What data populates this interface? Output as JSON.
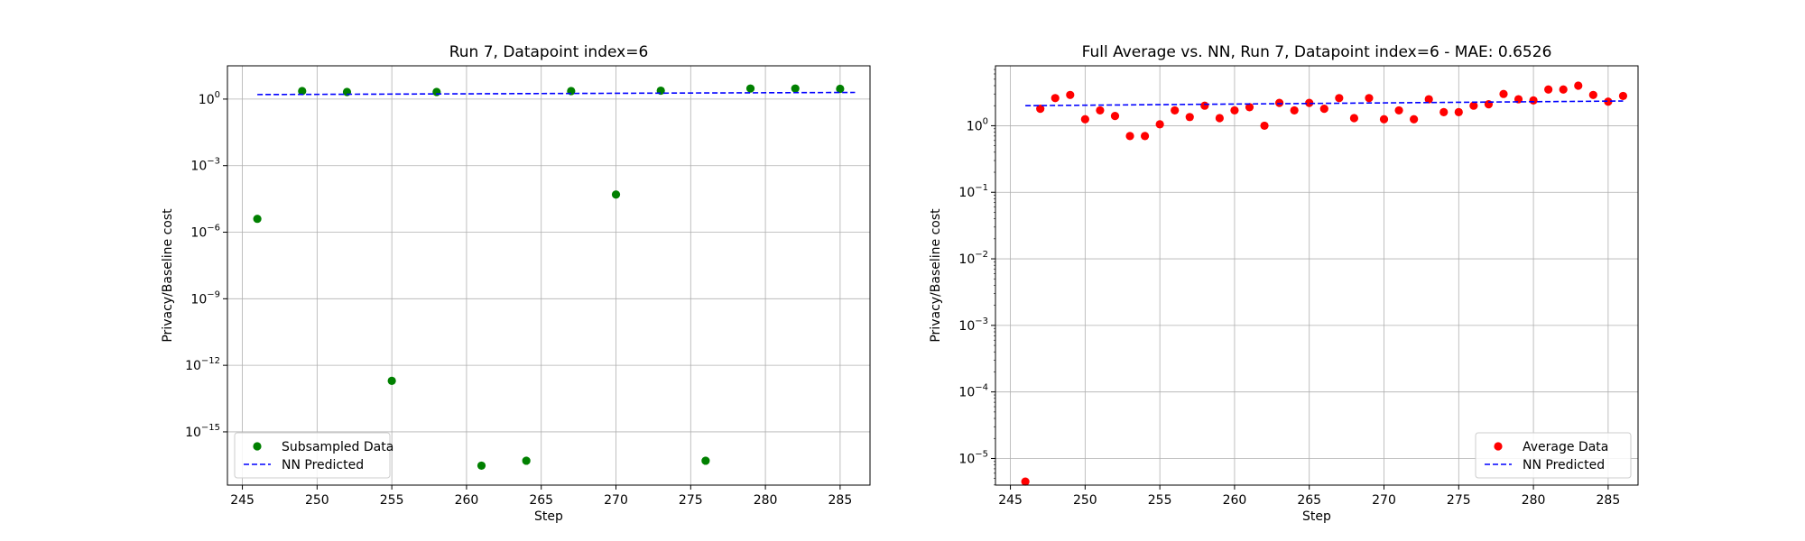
{
  "chart_data": [
    {
      "type": "scatter",
      "title": "Run 7, Datapoint index=6",
      "xlabel": "Step",
      "ylabel": "Privacy/Baseline cost",
      "yscale": "log",
      "xlim": [
        244,
        287
      ],
      "ylim_exp": [
        -17.4,
        1.5
      ],
      "grid": true,
      "legend_position": "lower-left",
      "x_ticks": [
        245,
        250,
        255,
        260,
        265,
        270,
        275,
        280,
        285
      ],
      "y_ticks_exp": [
        0,
        -3,
        -6,
        -9,
        -12,
        -15
      ],
      "y_tick_labels": [
        "10^0",
        "10^-3",
        "10^-6",
        "10^-9",
        "10^-12",
        "10^-15"
      ],
      "series": [
        {
          "name": "Subsampled Data",
          "kind": "scatter",
          "color": "#008000",
          "points": [
            {
              "x": 246,
              "y": 4e-06
            },
            {
              "x": 249,
              "y": 2.3
            },
            {
              "x": 252,
              "y": 2.1
            },
            {
              "x": 255,
              "y": 2e-13
            },
            {
              "x": 258,
              "y": 2.1
            },
            {
              "x": 261,
              "y": 3e-17
            },
            {
              "x": 264,
              "y": 5e-17
            },
            {
              "x": 267,
              "y": 2.3
            },
            {
              "x": 270,
              "y": 5e-05
            },
            {
              "x": 273,
              "y": 2.4
            },
            {
              "x": 276,
              "y": 5e-17
            },
            {
              "x": 279,
              "y": 3.0
            },
            {
              "x": 282,
              "y": 3.0
            },
            {
              "x": 285,
              "y": 2.9
            }
          ]
        },
        {
          "name": "NN Predicted",
          "kind": "dashed-line",
          "color": "#0000ff",
          "points": [
            {
              "x": 246,
              "y": 1.6
            },
            {
              "x": 286,
              "y": 2.0
            }
          ]
        }
      ]
    },
    {
      "type": "scatter",
      "title": "Full Average vs. NN, Run 7, Datapoint index=6 - MAE: 0.6526",
      "xlabel": "Step",
      "ylabel": "Privacy/Baseline cost",
      "yscale": "log",
      "xlim": [
        244,
        287
      ],
      "ylim_exp": [
        -5.4,
        0.9
      ],
      "grid": true,
      "legend_position": "lower-right",
      "x_ticks": [
        245,
        250,
        255,
        260,
        265,
        270,
        275,
        280,
        285
      ],
      "y_ticks_exp": [
        0,
        -1,
        -2,
        -3,
        -4,
        -5
      ],
      "y_tick_labels": [
        "10^0",
        "10^-1",
        "10^-2",
        "10^-3",
        "10^-4",
        "10^-5"
      ],
      "series": [
        {
          "name": "Average Data",
          "kind": "scatter",
          "color": "#ff0000",
          "points": [
            {
              "x": 246,
              "y": 4.5e-06
            },
            {
              "x": 247,
              "y": 1.8
            },
            {
              "x": 248,
              "y": 2.6
            },
            {
              "x": 249,
              "y": 2.9
            },
            {
              "x": 250,
              "y": 1.25
            },
            {
              "x": 251,
              "y": 1.7
            },
            {
              "x": 252,
              "y": 1.4
            },
            {
              "x": 253,
              "y": 0.7
            },
            {
              "x": 254,
              "y": 0.7
            },
            {
              "x": 255,
              "y": 1.05
            },
            {
              "x": 256,
              "y": 1.7
            },
            {
              "x": 257,
              "y": 1.35
            },
            {
              "x": 258,
              "y": 2.0
            },
            {
              "x": 259,
              "y": 1.3
            },
            {
              "x": 260,
              "y": 1.7
            },
            {
              "x": 261,
              "y": 1.9
            },
            {
              "x": 262,
              "y": 1.0
            },
            {
              "x": 263,
              "y": 2.2
            },
            {
              "x": 264,
              "y": 1.7
            },
            {
              "x": 265,
              "y": 2.2
            },
            {
              "x": 266,
              "y": 1.8
            },
            {
              "x": 267,
              "y": 2.6
            },
            {
              "x": 268,
              "y": 1.3
            },
            {
              "x": 269,
              "y": 2.6
            },
            {
              "x": 270,
              "y": 1.25
            },
            {
              "x": 271,
              "y": 1.7
            },
            {
              "x": 272,
              "y": 1.25
            },
            {
              "x": 273,
              "y": 2.5
            },
            {
              "x": 274,
              "y": 1.6
            },
            {
              "x": 275,
              "y": 1.6
            },
            {
              "x": 276,
              "y": 2.0
            },
            {
              "x": 277,
              "y": 2.1
            },
            {
              "x": 278,
              "y": 3.0
            },
            {
              "x": 279,
              "y": 2.5
            },
            {
              "x": 280,
              "y": 2.4
            },
            {
              "x": 281,
              "y": 3.5
            },
            {
              "x": 282,
              "y": 3.5
            },
            {
              "x": 283,
              "y": 4.0
            },
            {
              "x": 284,
              "y": 2.9
            },
            {
              "x": 285,
              "y": 2.3
            },
            {
              "x": 286,
              "y": 2.8
            }
          ]
        },
        {
          "name": "NN Predicted",
          "kind": "dashed-line",
          "color": "#0000ff",
          "points": [
            {
              "x": 246,
              "y": 2.0
            },
            {
              "x": 286,
              "y": 2.35
            }
          ]
        }
      ]
    }
  ]
}
